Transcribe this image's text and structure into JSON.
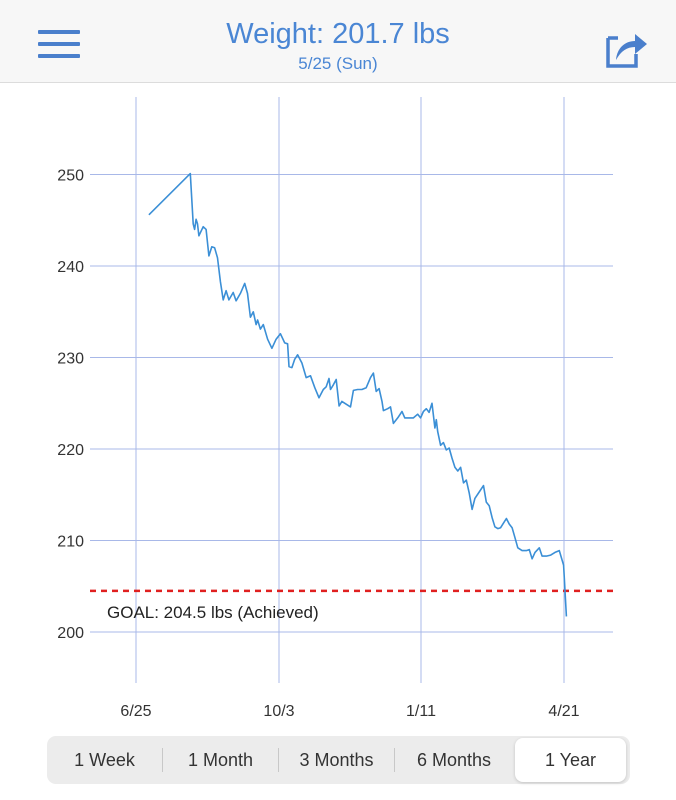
{
  "header": {
    "title": "Weight: 201.7 lbs",
    "subtitle": "5/25 (Sun)",
    "menu_icon": "hamburger-menu-icon",
    "share_icon": "share-icon"
  },
  "colors": {
    "accent": "#4a86d4",
    "line": "#3b8fd6",
    "goal": "#e02020",
    "grid": "#a8b8e8"
  },
  "chart_data": {
    "type": "line",
    "x_ticks": [
      "6/25",
      "10/3",
      "1/11",
      "4/21"
    ],
    "y_ticks": [
      200,
      210,
      220,
      230,
      240,
      250
    ],
    "ylim": [
      193.5,
      259.5
    ],
    "xlim": [
      "2024-06-25",
      "2025-05-25"
    ],
    "goal": {
      "value": 204.5,
      "label": "GOAL: 204.5 lbs (Achieved)"
    },
    "series": [
      {
        "points": [
          [
            "2024-07-04",
            245.6
          ],
          [
            "2024-08-02",
            250.1
          ],
          [
            "2024-08-04",
            244.6
          ],
          [
            "2024-08-05",
            244.0
          ],
          [
            "2024-08-06",
            245.1
          ],
          [
            "2024-08-07",
            244.6
          ],
          [
            "2024-08-08",
            243.3
          ],
          [
            "2024-08-11",
            244.3
          ],
          [
            "2024-08-13",
            244.0
          ],
          [
            "2024-08-15",
            241.1
          ],
          [
            "2024-08-17",
            242.1
          ],
          [
            "2024-08-19",
            242.0
          ],
          [
            "2024-08-21",
            240.9
          ],
          [
            "2024-08-23",
            238.3
          ],
          [
            "2024-08-25",
            236.3
          ],
          [
            "2024-08-27",
            237.3
          ],
          [
            "2024-08-29",
            236.3
          ],
          [
            "2024-09-01",
            237.1
          ],
          [
            "2024-09-03",
            236.2
          ],
          [
            "2024-09-06",
            237.0
          ],
          [
            "2024-09-09",
            238.1
          ],
          [
            "2024-09-11",
            237.0
          ],
          [
            "2024-09-13",
            234.4
          ],
          [
            "2024-09-15",
            235.0
          ],
          [
            "2024-09-17",
            233.6
          ],
          [
            "2024-09-18",
            234.1
          ],
          [
            "2024-09-20",
            233.1
          ],
          [
            "2024-09-22",
            233.6
          ],
          [
            "2024-09-25",
            232.0
          ],
          [
            "2024-09-28",
            231.0
          ],
          [
            "2024-10-01",
            232.0
          ],
          [
            "2024-10-04",
            232.6
          ],
          [
            "2024-10-07",
            231.6
          ],
          [
            "2024-10-09",
            231.5
          ],
          [
            "2024-10-10",
            229.0
          ],
          [
            "2024-10-12",
            228.9
          ],
          [
            "2024-10-14",
            229.8
          ],
          [
            "2024-10-16",
            230.3
          ],
          [
            "2024-10-19",
            229.4
          ],
          [
            "2024-10-22",
            227.8
          ],
          [
            "2024-10-25",
            228.0
          ],
          [
            "2024-10-28",
            226.7
          ],
          [
            "2024-10-31",
            225.6
          ],
          [
            "2024-11-03",
            226.5
          ],
          [
            "2024-11-05",
            226.8
          ],
          [
            "2024-11-07",
            227.7
          ],
          [
            "2024-11-08",
            226.5
          ],
          [
            "2024-11-10",
            227.0
          ],
          [
            "2024-11-12",
            227.6
          ],
          [
            "2024-11-14",
            224.7
          ],
          [
            "2024-11-16",
            225.2
          ],
          [
            "2024-11-19",
            224.9
          ],
          [
            "2024-11-22",
            224.6
          ],
          [
            "2024-11-24",
            226.4
          ],
          [
            "2024-11-27",
            226.5
          ],
          [
            "2024-11-30",
            226.5
          ],
          [
            "2024-12-03",
            226.7
          ],
          [
            "2024-12-06",
            227.8
          ],
          [
            "2024-12-08",
            228.3
          ],
          [
            "2024-12-10",
            226.3
          ],
          [
            "2024-12-12",
            226.6
          ],
          [
            "2024-12-14",
            225.2
          ],
          [
            "2024-12-15",
            224.2
          ],
          [
            "2024-12-18",
            224.4
          ],
          [
            "2024-12-20",
            224.6
          ],
          [
            "2024-12-22",
            222.8
          ],
          [
            "2024-12-25",
            223.4
          ],
          [
            "2024-12-28",
            224.1
          ],
          [
            "2024-12-30",
            223.4
          ],
          [
            "2025-01-02",
            223.4
          ],
          [
            "2025-01-05",
            223.4
          ],
          [
            "2025-01-08",
            223.8
          ],
          [
            "2025-01-10",
            223.4
          ],
          [
            "2025-01-12",
            224.1
          ],
          [
            "2025-01-14",
            224.4
          ],
          [
            "2025-01-16",
            224.0
          ],
          [
            "2025-01-18",
            225.0
          ],
          [
            "2025-01-20",
            222.3
          ],
          [
            "2025-01-21",
            223.2
          ],
          [
            "2025-01-22",
            221.9
          ],
          [
            "2025-01-24",
            220.4
          ],
          [
            "2025-01-26",
            220.7
          ],
          [
            "2025-01-28",
            219.9
          ],
          [
            "2025-01-30",
            220.1
          ],
          [
            "2025-02-01",
            219.0
          ],
          [
            "2025-02-03",
            218.0
          ],
          [
            "2025-02-05",
            217.6
          ],
          [
            "2025-02-07",
            218.0
          ],
          [
            "2025-02-09",
            216.3
          ],
          [
            "2025-02-11",
            216.6
          ],
          [
            "2025-02-13",
            215.2
          ],
          [
            "2025-02-15",
            213.4
          ],
          [
            "2025-02-17",
            214.6
          ],
          [
            "2025-02-20",
            215.3
          ],
          [
            "2025-02-23",
            216.0
          ],
          [
            "2025-02-25",
            214.2
          ],
          [
            "2025-02-27",
            213.8
          ],
          [
            "2025-03-01",
            212.5
          ],
          [
            "2025-03-03",
            211.5
          ],
          [
            "2025-03-05",
            211.3
          ],
          [
            "2025-03-07",
            211.4
          ],
          [
            "2025-03-09",
            211.9
          ],
          [
            "2025-03-11",
            212.4
          ],
          [
            "2025-03-13",
            211.8
          ],
          [
            "2025-03-15",
            211.4
          ],
          [
            "2025-03-17",
            210.3
          ],
          [
            "2025-03-19",
            209.2
          ],
          [
            "2025-03-22",
            208.9
          ],
          [
            "2025-03-25",
            208.9
          ],
          [
            "2025-03-27",
            209.0
          ],
          [
            "2025-03-29",
            208.0
          ],
          [
            "2025-03-31",
            208.7
          ],
          [
            "2025-04-03",
            209.2
          ],
          [
            "2025-04-05",
            208.3
          ],
          [
            "2025-04-08",
            208.3
          ],
          [
            "2025-04-11",
            208.4
          ],
          [
            "2025-04-14",
            208.7
          ],
          [
            "2025-04-17",
            208.9
          ],
          [
            "2025-04-20",
            207.3
          ],
          [
            "2025-04-22",
            201.7
          ]
        ]
      }
    ]
  },
  "range_selector": {
    "options": [
      "1 Week",
      "1 Month",
      "3 Months",
      "6 Months",
      "1 Year"
    ],
    "selected": "1 Year"
  }
}
